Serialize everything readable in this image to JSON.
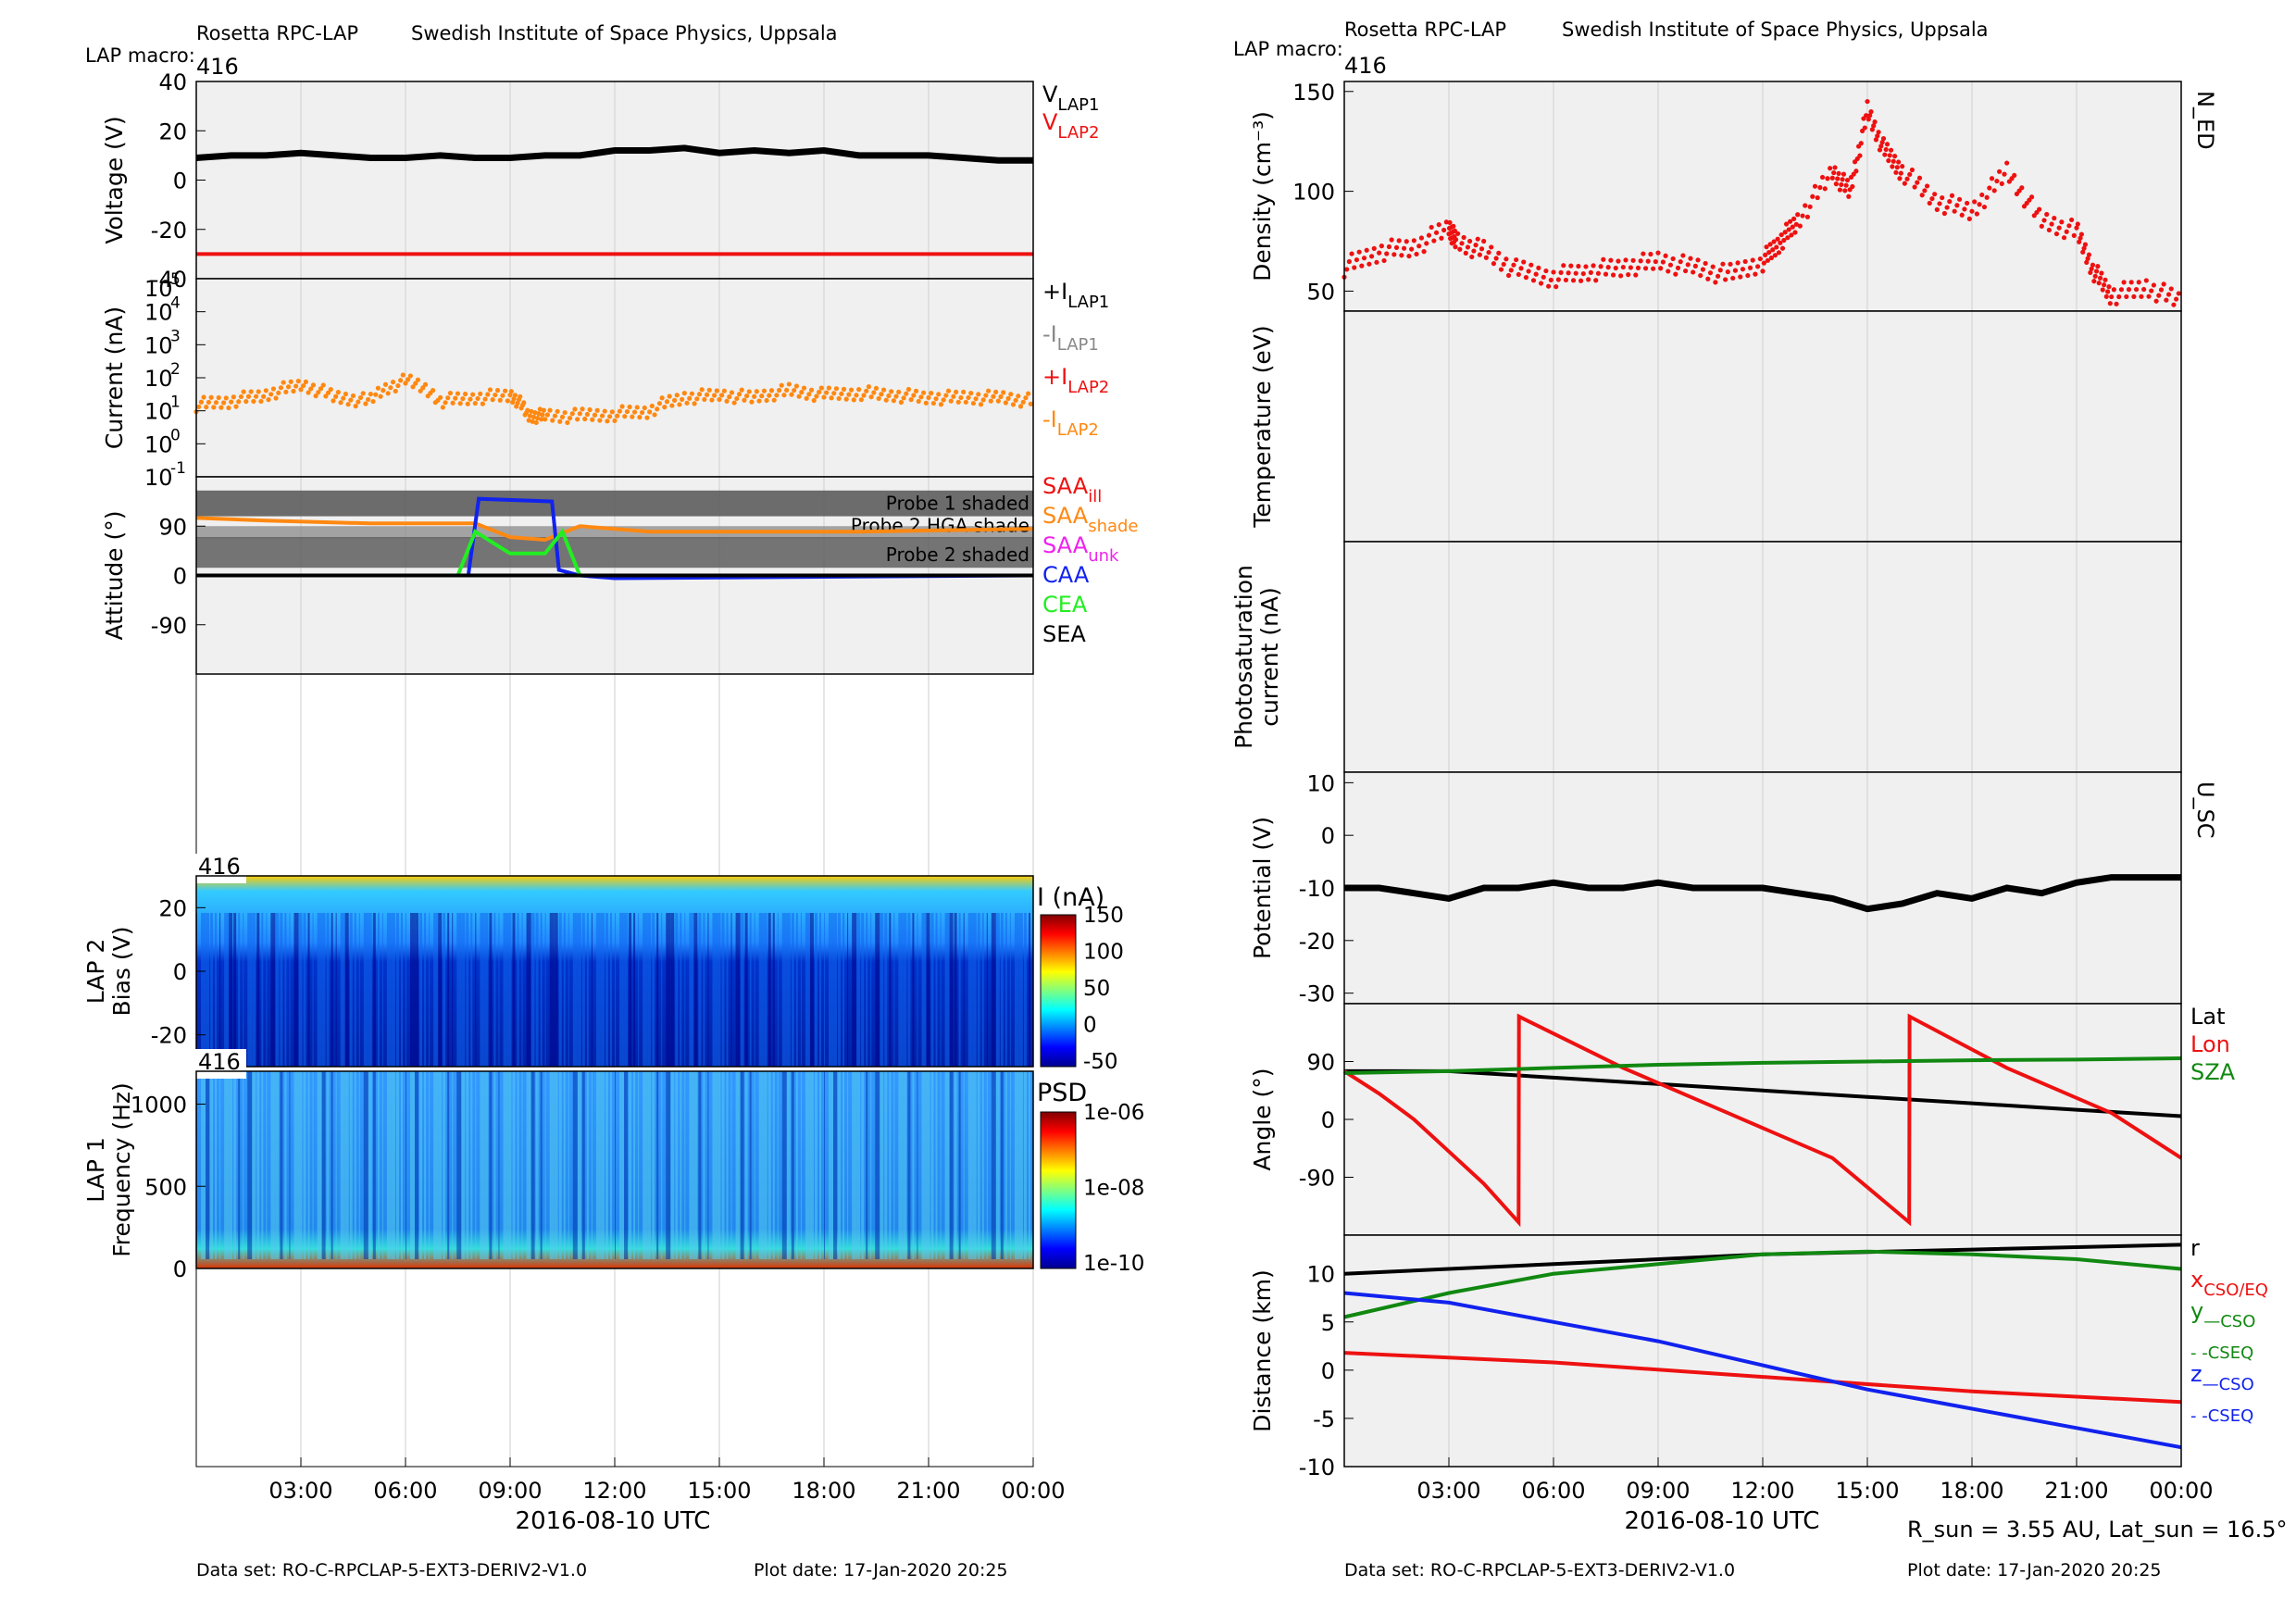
{
  "header": {
    "instrument": "Rosetta RPC-LAP",
    "institute": "Swedish Institute of Space Physics, Uppsala",
    "macro_label": "LAP macro:",
    "macro_value": "416"
  },
  "footer": {
    "dataset": "Data set: RO-C-RPCLAP-5-EXT3-DERIV2-V1.0",
    "plotdate": "Plot date: 17-Jan-2020 20:25",
    "orbit_info": "R_sun = 3.55 AU, Lat_sun = 16.5°"
  },
  "time_axis": {
    "ticks": [
      "03:00",
      "06:00",
      "09:00",
      "12:00",
      "15:00",
      "18:00",
      "21:00",
      "00:00"
    ],
    "tick_hours": [
      3,
      6,
      9,
      12,
      15,
      18,
      21,
      24
    ],
    "range_hours": [
      0,
      24
    ],
    "label": "2016-08-10 UTC"
  },
  "colors": {
    "panel_bg": "#f0f0f0",
    "red": "#ee1111",
    "orange": "#ff8811",
    "blue": "#1122ee",
    "green": "#22ee22",
    "darkgreen": "#118811",
    "magenta": "#ee22ee",
    "gray": "#888888"
  },
  "chart_data": [
    {
      "id": "voltage",
      "type": "line",
      "ylabel": "Voltage (V)",
      "ylim": [
        -40,
        40
      ],
      "yticks": [
        40,
        20,
        0,
        -20,
        -40
      ],
      "legend": [
        {
          "text": "V",
          "sub": "LAP1",
          "color": "#000000"
        },
        {
          "text": "V",
          "sub": "LAP2",
          "color": "#ee1111"
        }
      ],
      "series": [
        {
          "name": "V_LAP1",
          "color": "#000000",
          "x": [
            0,
            1,
            2,
            3,
            4,
            5,
            6,
            7,
            8,
            9,
            10,
            11,
            12,
            13,
            14,
            15,
            16,
            17,
            18,
            19,
            20,
            21,
            22,
            23,
            24
          ],
          "y": [
            9,
            10,
            10,
            11,
            10,
            9,
            9,
            10,
            9,
            9,
            10,
            10,
            12,
            12,
            13,
            11,
            12,
            11,
            12,
            10,
            10,
            10,
            9,
            8,
            8
          ]
        },
        {
          "name": "V_LAP2",
          "color": "#ee1111",
          "x": [
            0,
            24
          ],
          "y": [
            -30,
            -30
          ]
        }
      ]
    },
    {
      "id": "current",
      "type": "scatter",
      "ylabel": "Current (nA)",
      "yscale": "log",
      "ylim": [
        0.1,
        100000
      ],
      "yticks": [
        "10^4",
        "10^3",
        "10^2",
        "10^1",
        "10^0",
        "10^-1"
      ],
      "ytick_extra": "10",
      "ytick_extra_exp": "5",
      "legend": [
        {
          "text": "+I",
          "sub": "LAP1",
          "color": "#000000"
        },
        {
          "text": "-I",
          "sub": "LAP1",
          "color": "#888888"
        },
        {
          "text": "+I",
          "sub": "LAP2",
          "color": "#ee1111"
        },
        {
          "text": "-I",
          "sub": "LAP2",
          "color": "#ff8811"
        }
      ],
      "series": [
        {
          "name": "-I_LAP2",
          "color": "#ff8811",
          "x": [
            0,
            1,
            2,
            3,
            4,
            5,
            6,
            7,
            8,
            9,
            9.5,
            10,
            11,
            12,
            13,
            14,
            15,
            16,
            17,
            18,
            19,
            20,
            21,
            22,
            23,
            24
          ],
          "y": [
            15,
            20,
            30,
            60,
            25,
            20,
            80,
            20,
            25,
            30,
            7,
            7,
            7,
            8,
            10,
            25,
            30,
            25,
            40,
            30,
            35,
            30,
            25,
            25,
            25,
            20
          ]
        }
      ]
    },
    {
      "id": "attitude",
      "type": "line",
      "ylabel": "Attitude (°)",
      "ylim": [
        -180,
        180
      ],
      "yticks": [
        90,
        0,
        -90
      ],
      "bands": [
        {
          "label": "Probe 1 shaded"
        },
        {
          "label": "Probe 2 HGA shade"
        },
        {
          "label": "Probe 2 shaded"
        }
      ],
      "legend": [
        {
          "text": "SAA",
          "sub": "ill",
          "color": "#ee1111"
        },
        {
          "text": "SAA",
          "sub": "shade",
          "color": "#ff8811"
        },
        {
          "text": "SAA",
          "sub": "unk",
          "color": "#ee22ee"
        },
        {
          "text": "CAA",
          "sub": "",
          "color": "#1122ee"
        },
        {
          "text": "CEA",
          "sub": "",
          "color": "#22ee22"
        },
        {
          "text": "SEA",
          "sub": "",
          "color": "#000000"
        }
      ],
      "series": [
        {
          "name": "SAA",
          "color": "#ff8811",
          "x": [
            0,
            2,
            5,
            8,
            9,
            10,
            11,
            12,
            13,
            16,
            19,
            24
          ],
          "y": [
            105,
            100,
            95,
            95,
            70,
            65,
            90,
            85,
            80,
            80,
            80,
            85
          ]
        },
        {
          "name": "CAA",
          "color": "#1122ee",
          "x": [
            0,
            7.8,
            8.1,
            10.2,
            10.4,
            11,
            12,
            24
          ],
          "y": [
            0,
            0,
            140,
            135,
            10,
            0,
            -5,
            0
          ]
        },
        {
          "name": "CEA",
          "color": "#22ee22",
          "x": [
            0,
            7.5,
            8,
            9,
            10,
            10.5,
            11,
            24
          ],
          "y": [
            0,
            0,
            80,
            40,
            40,
            80,
            0,
            0
          ]
        },
        {
          "name": "SEA",
          "color": "#000000",
          "x": [
            0,
            24
          ],
          "y": [
            0,
            0
          ]
        }
      ]
    },
    {
      "id": "lap2bias",
      "type": "heatmap",
      "ylabel": "LAP 2",
      "ylabel2": "Bias (V)",
      "ylim": [
        -30,
        30
      ],
      "yticks": [
        20,
        0,
        -20
      ],
      "colorbar": {
        "label": "I (nA)",
        "range": [
          -50,
          150
        ],
        "ticks": [
          150,
          100,
          50,
          0,
          -50
        ]
      },
      "macro": "416"
    },
    {
      "id": "lap1psd",
      "type": "heatmap",
      "ylabel": "LAP 1",
      "ylabel2": "Frequency (Hz)",
      "ylim": [
        0,
        1200
      ],
      "yticks": [
        1000,
        500,
        0
      ],
      "colorbar": {
        "label": "PSD",
        "ticks": [
          "1e-06",
          "1e-08",
          "1e-10"
        ]
      },
      "macro": "416"
    },
    {
      "id": "density",
      "type": "scatter",
      "ylabel": "Density (cm⁻³)",
      "ylim": [
        40,
        155
      ],
      "yticks": [
        150,
        100,
        50
      ],
      "side_label": "N_ED",
      "series": [
        {
          "name": "N_ED",
          "color": "#ee1111",
          "x": [
            0,
            1,
            2,
            3,
            3.2,
            4,
            5,
            6,
            7,
            8,
            9,
            10,
            11,
            12,
            12.5,
            13,
            14,
            14.5,
            15,
            15.5,
            16,
            17,
            18,
            19,
            20,
            21,
            21.5,
            22,
            23,
            24
          ],
          "y": [
            62,
            70,
            72,
            82,
            75,
            70,
            60,
            57,
            60,
            62,
            65,
            62,
            58,
            65,
            75,
            85,
            110,
            100,
            140,
            120,
            110,
            95,
            90,
            110,
            85,
            80,
            60,
            48,
            52,
            45
          ]
        }
      ]
    },
    {
      "id": "temperature",
      "type": "line",
      "ylabel": "Temperature (eV)",
      "yticks": [],
      "series": []
    },
    {
      "id": "photosat",
      "type": "line",
      "ylabel": "Photosaturation",
      "ylabel2": "current (nA)",
      "yticks": [],
      "series": []
    },
    {
      "id": "potential",
      "type": "line",
      "ylabel": "Potential (V)",
      "ylim": [
        -32,
        12
      ],
      "yticks": [
        10,
        0,
        -10,
        -20,
        -30
      ],
      "side_label": "U_SC",
      "series": [
        {
          "name": "U_SC",
          "color": "#000000",
          "x": [
            0,
            1,
            2,
            3,
            4,
            5,
            6,
            7,
            8,
            9,
            10,
            11,
            12,
            13,
            14,
            15,
            16,
            17,
            18,
            19,
            20,
            21,
            22,
            23,
            24
          ],
          "y": [
            -10,
            -10,
            -11,
            -12,
            -10,
            -10,
            -9,
            -10,
            -10,
            -9,
            -10,
            -10,
            -10,
            -11,
            -12,
            -14,
            -13,
            -11,
            -12,
            -10,
            -11,
            -9,
            -8,
            -8,
            -8
          ]
        }
      ]
    },
    {
      "id": "angle",
      "type": "line",
      "ylabel": "Angle (°)",
      "ylim": [
        -180,
        180
      ],
      "yticks": [
        90,
        0,
        -90
      ],
      "legend": [
        {
          "text": "Lat",
          "sub": "",
          "color": "#000000"
        },
        {
          "text": "Lon",
          "sub": "",
          "color": "#ee1111"
        },
        {
          "text": "SZA",
          "sub": "",
          "color": "#118811"
        }
      ],
      "series": [
        {
          "name": "Lat",
          "color": "#000000",
          "x": [
            0,
            3,
            6,
            9,
            12,
            15,
            18,
            21,
            24
          ],
          "y": [
            75,
            75,
            65,
            55,
            45,
            35,
            25,
            15,
            5
          ]
        },
        {
          "name": "Lon",
          "color": "#ee1111",
          "x": [
            0,
            1,
            2,
            3,
            4,
            5,
            5.01,
            8,
            11,
            14,
            16.2,
            16.21,
            19,
            22,
            24
          ],
          "y": [
            75,
            40,
            0,
            -50,
            -100,
            -160,
            160,
            80,
            10,
            -60,
            -160,
            160,
            80,
            10,
            -60
          ]
        },
        {
          "name": "SZA",
          "color": "#118811",
          "x": [
            0,
            3,
            6,
            9,
            12,
            15,
            18,
            21,
            24
          ],
          "y": [
            72,
            75,
            80,
            85,
            88,
            90,
            92,
            93,
            95
          ]
        }
      ]
    },
    {
      "id": "distance",
      "type": "line",
      "ylabel": "Distance (km)",
      "ylim": [
        -10,
        14
      ],
      "yticks": [
        10,
        5,
        0,
        -5,
        -10
      ],
      "legend": [
        {
          "text": "r",
          "sub": "",
          "color": "#000000"
        },
        {
          "text": "x",
          "sub": "CSO/EQ",
          "color": "#ee1111"
        },
        {
          "text": "y",
          "sub": "—CSO",
          "color": "#118811"
        },
        {
          "text": "",
          "sub": "- -CSEQ",
          "color": "#118811"
        },
        {
          "text": "z",
          "sub": "—CSO",
          "color": "#1122ee"
        },
        {
          "text": "",
          "sub": "- -CSEQ",
          "color": "#1122ee"
        }
      ],
      "series": [
        {
          "name": "r",
          "color": "#000000",
          "x": [
            0,
            6,
            12,
            18,
            24
          ],
          "y": [
            10,
            11,
            12,
            12.5,
            13
          ]
        },
        {
          "name": "x",
          "color": "#ee1111",
          "x": [
            0,
            6,
            12,
            18,
            24
          ],
          "y": [
            1.8,
            0.8,
            -0.7,
            -2.2,
            -3.3
          ]
        },
        {
          "name": "y",
          "color": "#118811",
          "x": [
            0,
            3,
            6,
            9,
            12,
            15,
            18,
            21,
            24
          ],
          "y": [
            5.5,
            8,
            10,
            11,
            12,
            12.3,
            12,
            11.5,
            10.5
          ]
        },
        {
          "name": "z",
          "color": "#1122ee",
          "x": [
            0,
            3,
            6,
            9,
            12,
            15,
            18,
            21,
            24
          ],
          "y": [
            8,
            7,
            5,
            3,
            0.5,
            -2,
            -4,
            -6,
            -8
          ]
        }
      ]
    }
  ]
}
